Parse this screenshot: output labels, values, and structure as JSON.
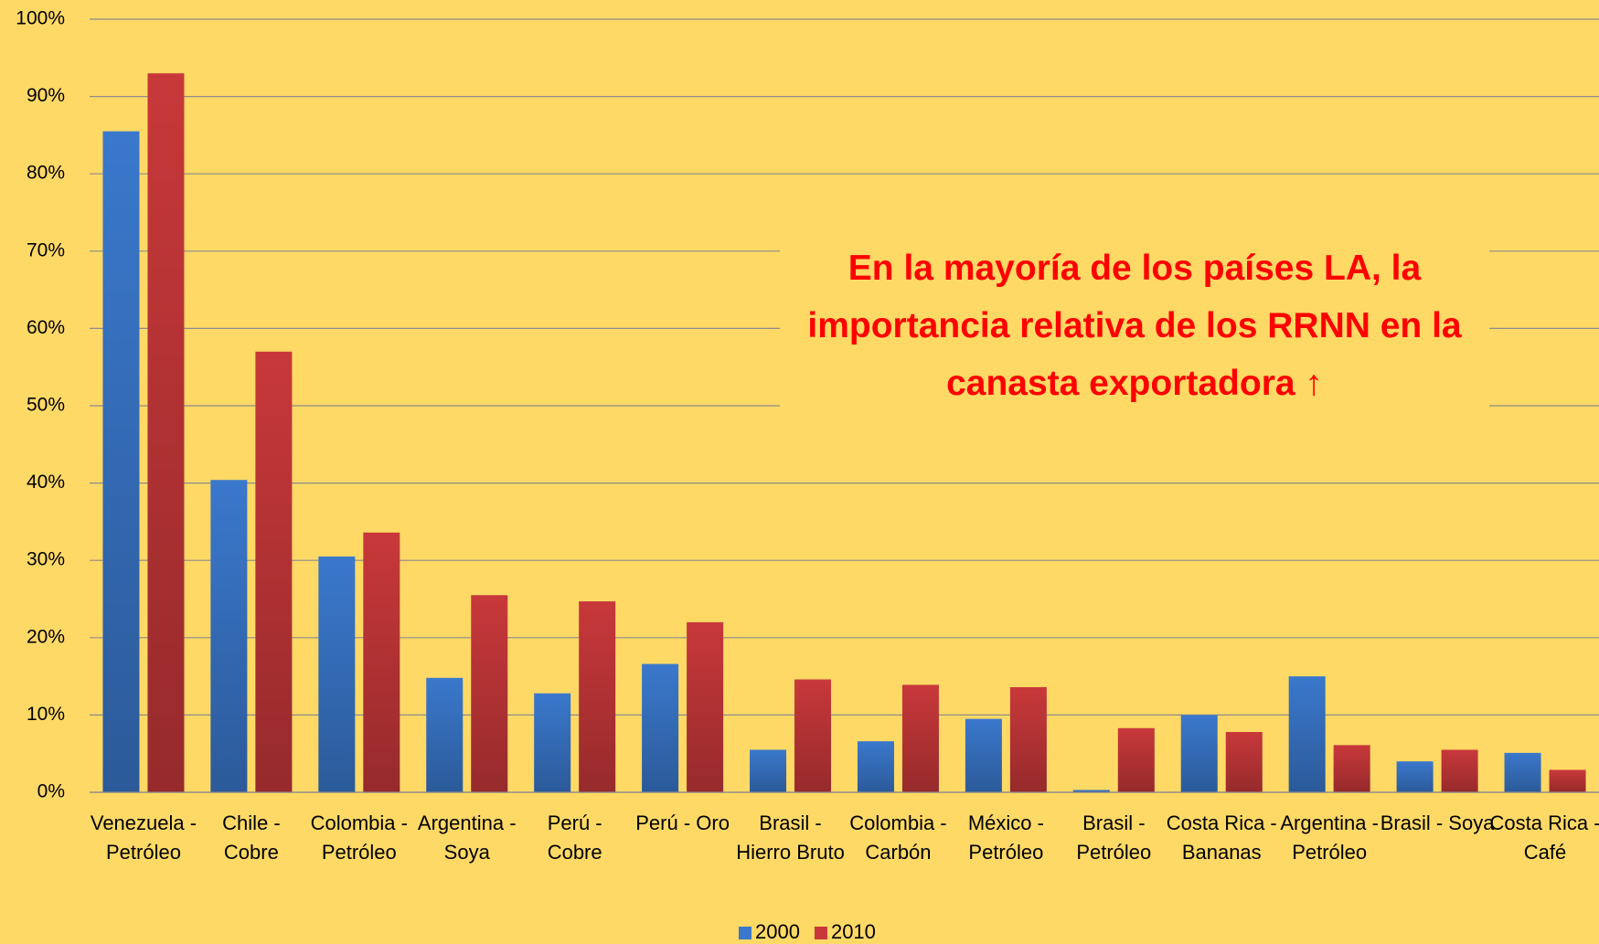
{
  "chart_data": {
    "type": "bar",
    "annotation": "En la mayoría  de los países LA, la importancia relativa de los RRNN en la canasta exportadora ↑",
    "categories": [
      "Venezuela - Petróleo",
      "Chile - Cobre",
      "Colombia - Petróleo",
      "Argentina - Soya",
      "Perú - Cobre",
      "Perú - Oro",
      "Brasil - Hierro Bruto",
      "Colombia - Carbón",
      "México - Petróleo",
      "Brasil - Petróleo",
      "Costa Rica - Bananas",
      "Argentina - Petróleo",
      "Brasil - Soya",
      "Costa Rica - Café"
    ],
    "series": [
      {
        "name": "2000",
        "color": "#3a78cc",
        "values": [
          85.5,
          40.4,
          30.5,
          14.8,
          12.8,
          16.6,
          5.5,
          6.6,
          9.5,
          0.3,
          10.0,
          15.0,
          4.0,
          5.1
        ]
      },
      {
        "name": "2010",
        "color": "#c8383a",
        "values": [
          93.0,
          57.0,
          33.6,
          25.5,
          24.7,
          22.0,
          14.6,
          13.9,
          13.6,
          8.3,
          7.8,
          6.1,
          5.5,
          2.9
        ]
      }
    ],
    "ylim": [
      0,
      100
    ],
    "yticks": [
      {
        "value": 0,
        "label": "0%"
      },
      {
        "value": 10,
        "label": "10%"
      },
      {
        "value": 20,
        "label": "20%"
      },
      {
        "value": 30,
        "label": "30%"
      },
      {
        "value": 40,
        "label": "40%"
      },
      {
        "value": 50,
        "label": "50%"
      },
      {
        "value": 60,
        "label": "60%"
      },
      {
        "value": 70,
        "label": "70%"
      },
      {
        "value": 80,
        "label": "80%"
      },
      {
        "value": 90,
        "label": "90%"
      },
      {
        "value": 100,
        "label": "100%"
      }
    ],
    "grid": true,
    "legend": "bottom"
  }
}
